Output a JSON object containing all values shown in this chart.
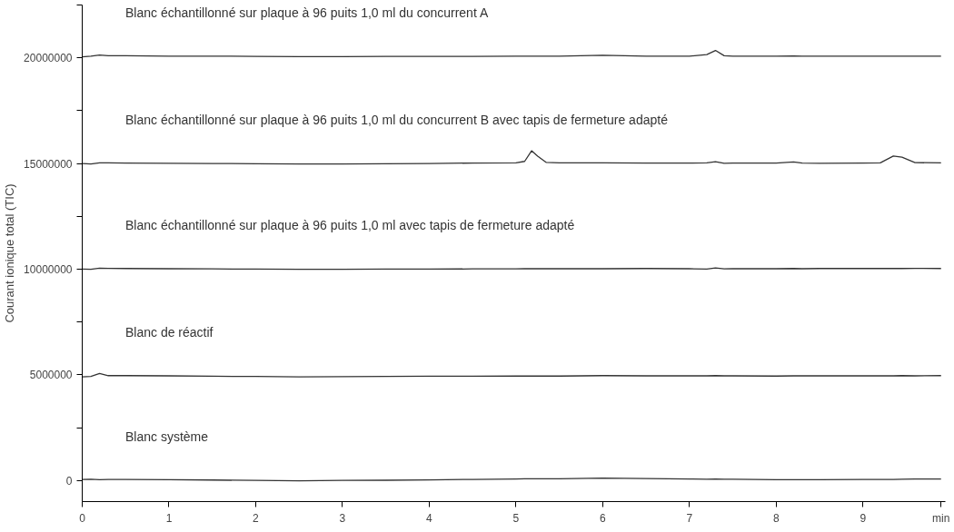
{
  "chart_data": {
    "type": "line",
    "ylabel": "Courant ionique total (TIC)",
    "xlim": [
      0,
      9.95
    ],
    "xticks": [
      0,
      1,
      2,
      3,
      4,
      5,
      6,
      7,
      8,
      9,
      {
        "value": 9.9,
        "label": "min"
      }
    ],
    "ylim": [
      -1000000,
      22500000
    ],
    "yticks": [
      0,
      {
        "value": 2500000,
        "label": null
      },
      5000000,
      {
        "value": 7500000,
        "label": null
      },
      10000000,
      {
        "value": 12500000,
        "label": null
      },
      15000000,
      {
        "value": 17500000,
        "label": null
      },
      20000000,
      {
        "value": 22500000,
        "label": null
      }
    ],
    "grid": false,
    "marker": "none",
    "line_style": "solid",
    "x": [
      0,
      0.1,
      0.2,
      0.3,
      0.5,
      1,
      1.5,
      2,
      2.5,
      3,
      3.5,
      4,
      4.5,
      5,
      5.1,
      5.18,
      5.25,
      5.35,
      5.5,
      6,
      6.5,
      7,
      7.2,
      7.3,
      7.4,
      7.5,
      8,
      8.2,
      8.3,
      8.5,
      9,
      9.2,
      9.35,
      9.45,
      9.6,
      9.9
    ],
    "series": [
      {
        "name": "Blanc échantillonné sur plaque à 96 puits 1,0 ml du concurrent A",
        "color": "#333333",
        "values": [
          20050000,
          20080000,
          20130000,
          20100000,
          20100000,
          20080000,
          20080000,
          20070000,
          20060000,
          20060000,
          20070000,
          20070000,
          20070000,
          20080000,
          20080000,
          20080000,
          20080000,
          20080000,
          20080000,
          20120000,
          20080000,
          20080000,
          20150000,
          20350000,
          20100000,
          20080000,
          20080000,
          20090000,
          20080000,
          20080000,
          20080000,
          20080000,
          20080000,
          20080000,
          20080000,
          20080000
        ]
      },
      {
        "name": "Blanc échantillonné sur plaque à 96 puits 1,0 ml du concurrent B avec tapis de fermeture adapté",
        "color": "#333333",
        "values": [
          15000000,
          14980000,
          15030000,
          15030000,
          15020000,
          15010000,
          15000000,
          14990000,
          14980000,
          14980000,
          14990000,
          15000000,
          15020000,
          15030000,
          15100000,
          15600000,
          15350000,
          15050000,
          15030000,
          15030000,
          15020000,
          15020000,
          15030000,
          15080000,
          15010000,
          15020000,
          15020000,
          15070000,
          15020000,
          15010000,
          15020000,
          15030000,
          15350000,
          15300000,
          15040000,
          15030000
        ]
      },
      {
        "name": "Blanc échantillonné sur plaque à 96 puits 1,0 ml avec tapis de fermeture adapté",
        "color": "#333333",
        "values": [
          10000000,
          9990000,
          10050000,
          10040000,
          10030000,
          10020000,
          10010000,
          10000000,
          9990000,
          9990000,
          10000000,
          10000000,
          10010000,
          10010000,
          10020000,
          10020000,
          10020000,
          10020000,
          10020000,
          10020000,
          10030000,
          10020000,
          10000000,
          10060000,
          10010000,
          10020000,
          10020000,
          10030000,
          10020000,
          10030000,
          10030000,
          10030000,
          10030000,
          10030000,
          10040000,
          10030000
        ]
      },
      {
        "name": "Blanc de réactif",
        "color": "#333333",
        "values": [
          4900000,
          4920000,
          5060000,
          4960000,
          4960000,
          4950000,
          4930000,
          4920000,
          4900000,
          4910000,
          4920000,
          4930000,
          4930000,
          4940000,
          4940000,
          4940000,
          4940000,
          4940000,
          4940000,
          4960000,
          4950000,
          4950000,
          4950000,
          4960000,
          4950000,
          4950000,
          4940000,
          4950000,
          4950000,
          4950000,
          4950000,
          4950000,
          4950000,
          4960000,
          4950000,
          4960000
        ]
      },
      {
        "name": "Blanc système",
        "color": "#333333",
        "values": [
          50000,
          60000,
          40000,
          50000,
          50000,
          40000,
          20000,
          0,
          -20000,
          0,
          10000,
          30000,
          50000,
          70000,
          80000,
          80000,
          80000,
          80000,
          80000,
          110000,
          90000,
          70000,
          60000,
          70000,
          60000,
          60000,
          40000,
          40000,
          40000,
          40000,
          50000,
          50000,
          50000,
          60000,
          70000,
          70000
        ]
      }
    ]
  }
}
